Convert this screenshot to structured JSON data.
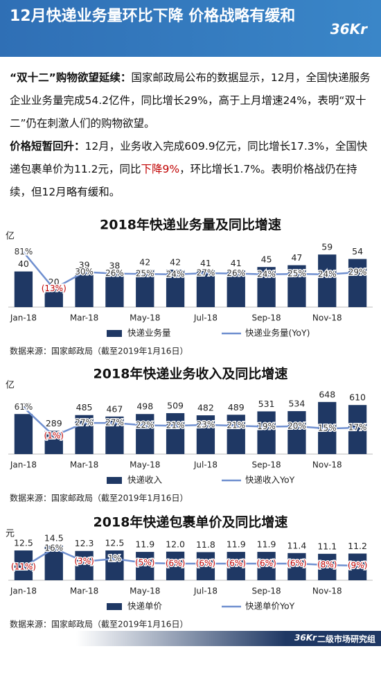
{
  "header": {
    "title": "12月快递业务量环比下降 价格战略有缓和",
    "logo": "36Kr"
  },
  "paragraphs": [
    {
      "lead": "“双十二”购物欲望延续：",
      "body": "国家邮政局公布的数据显示，12月，全国快递服务企业业务量完成54.2亿件，同比增长29%，高于上月增速24%，表明“双十二”仍在刺激人们的购物欲望。"
    },
    {
      "lead": "价格短暂回升：",
      "body": "12月，业务收入完成609.9亿元，同比增长17.3%，全国快递包裹单价为11.2元，同比",
      "highlight": "下降9%",
      "tail": "，环比增长1.7%。表明价格战仍在持续，但12月略有缓和。"
    }
  ],
  "chart_data": [
    {
      "type": "combo",
      "title": "2018年快递业务量及同比增速",
      "unit_label": "亿",
      "categories": [
        "Jan-18",
        null,
        "Mar-18",
        null,
        "May-18",
        null,
        "Jul-18",
        null,
        "Sep-18",
        null,
        "Nov-18",
        null
      ],
      "series": [
        {
          "name": "快递业务量",
          "color": "#1f3864",
          "values": [
            40,
            20,
            39,
            38,
            42,
            42,
            41,
            41,
            45,
            47,
            59,
            54
          ]
        },
        {
          "name": "快递业务量(YoY)",
          "color": "#6f8fcf",
          "axis": "y2",
          "values": [
            81,
            -13,
            30,
            26,
            25,
            24,
            27,
            26,
            24,
            25,
            24,
            29
          ],
          "value_labels": [
            "81%",
            "(13%)",
            "30%",
            "26%",
            "25%",
            "24%",
            "27%",
            "26%",
            "24%",
            "25%",
            "24%",
            "29%"
          ]
        }
      ],
      "ylim": [
        0,
        70
      ],
      "y2lim": [
        -60,
        100
      ],
      "source": "数据来源：国家邮政局（截至2019年1月16日）"
    },
    {
      "type": "combo",
      "title": "2018年快递业务收入及同比增速",
      "unit_label": "亿",
      "categories": [
        "Jan-18",
        null,
        "Mar-18",
        null,
        "May-18",
        null,
        "Jul-18",
        null,
        "Sep-18",
        null,
        "Nov-18",
        null
      ],
      "series": [
        {
          "name": "快递收入",
          "color": "#1f3864",
          "values": [
            498,
            289,
            485,
            467,
            498,
            509,
            482,
            489,
            531,
            534,
            648,
            610
          ]
        },
        {
          "name": "快递收入YoY",
          "color": "#6f8fcf",
          "axis": "y2",
          "values": [
            61,
            -1,
            27,
            27,
            22,
            21,
            23,
            21,
            19,
            20,
            15,
            17
          ],
          "value_labels": [
            "61%",
            "(1%)",
            "27%",
            "27%",
            "22%",
            "21%",
            "23%",
            "21%",
            "19%",
            "20%",
            "15%",
            "17%"
          ]
        }
      ],
      "ylim": [
        0,
        750
      ],
      "y2lim": [
        -40,
        90
      ],
      "source": "数据来源：国家邮政局（截至2019年1月16日）"
    },
    {
      "type": "combo",
      "title": "2018年快递包裹单价及同比增速",
      "unit_label": "元",
      "categories": [
        "Jan-18",
        null,
        "Mar-18",
        null,
        "May-18",
        null,
        "Jul-18",
        null,
        "Sep-18",
        null,
        "Nov-18",
        null
      ],
      "series": [
        {
          "name": "快递单价",
          "color": "#1f3864",
          "values": [
            12.5,
            14.5,
            12.3,
            12.5,
            11.9,
            12.0,
            11.8,
            11.9,
            11.9,
            11.4,
            11.1,
            11.2
          ],
          "value_labels": [
            "12.5",
            "14.5",
            "12.3",
            "12.5",
            "11.9",
            "12.0",
            "11.8",
            "11.9",
            "11.9",
            "11.4",
            "11.1",
            "11.2"
          ]
        },
        {
          "name": "快递单价YoY",
          "color": "#6f8fcf",
          "axis": "y2",
          "values": [
            -11,
            16,
            -3,
            1,
            -5,
            -6,
            -6,
            -6,
            -6,
            -6,
            -8,
            -9
          ],
          "value_labels": [
            "(11%)",
            "16%",
            "(3%)",
            "1%",
            "(5%)",
            "(6%)",
            "(6%)",
            "(6%)",
            "(6%)",
            "(6%)",
            "(8%)",
            "(9%)"
          ]
        }
      ],
      "ylim": [
        0,
        16
      ],
      "y2lim": [
        -30,
        25
      ],
      "source": "数据来源：国家邮政局（截至2019年1月16日）"
    }
  ],
  "footer": {
    "logo": "36Kr",
    "text": "二级市场研究组"
  }
}
